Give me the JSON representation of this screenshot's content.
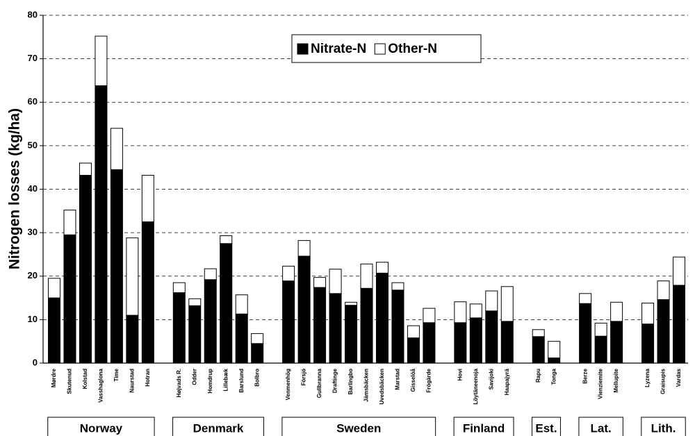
{
  "chart_data": {
    "type": "stacked_bar",
    "ylabel": "Nitrogen losses (kg/ha)",
    "categories": [
      "Mørdre",
      "Skutenud",
      "Kolstad",
      "Vasshaglona",
      "Time",
      "Naurstad",
      "Hotran",
      null,
      "Højvads R.",
      "Odder",
      "Homdrup",
      "Lillebæk",
      "Barslund",
      "Bolbro",
      null,
      "Venmenhög",
      "Försjö",
      "Gullbranna",
      "Draftinge",
      "Barlingbo",
      "Jämsbäcken",
      "Uvedsbäcken",
      "Marstad",
      "Gisselöå",
      "Frögärde",
      null,
      "Hovi",
      "Löytäneenoja",
      "Savijoki",
      "Haapajyrä",
      null,
      "Rapu",
      "Tonga",
      null,
      "Berze",
      "Vienziemite",
      "Mellupite",
      null,
      "Lyzena",
      "Graisupis",
      "Vardas"
    ],
    "groups": [
      "Norway",
      "Denmark",
      "Sweden",
      "Finland",
      "Est.",
      "Lat.",
      "Lith."
    ],
    "series": [
      {
        "name": "Nitrate-N",
        "color": "#000000",
        "values": [
          15,
          29.5,
          43.2,
          63.8,
          44.5,
          11,
          32.5,
          null,
          16.2,
          13.2,
          19.2,
          27.5,
          11.3,
          4.5,
          null,
          18.9,
          24.6,
          17.4,
          16,
          13.3,
          17.2,
          20.7,
          16.8,
          5.8,
          9.3,
          null,
          9.3,
          10.4,
          12,
          9.6,
          null,
          6.1,
          1.2,
          null,
          13.7,
          6.2,
          9.6,
          null,
          9,
          14.6,
          17.9
        ]
      },
      {
        "name": "Other-N",
        "color": "#ffffff",
        "values": [
          4.5,
          5.7,
          2.8,
          11.4,
          9.5,
          17.8,
          10.7,
          null,
          2.3,
          1.6,
          2.5,
          1.8,
          4.4,
          2.3,
          null,
          3.4,
          3.6,
          2.3,
          5.6,
          0.7,
          5.6,
          2.5,
          1.7,
          2.8,
          3.3,
          null,
          4.8,
          3.2,
          4.6,
          8,
          null,
          1.6,
          3.8,
          null,
          2.3,
          3,
          4.4,
          null,
          4.8,
          4.3,
          6.5
        ]
      }
    ],
    "ylim": [
      0,
      80
    ],
    "yticks": [
      0,
      10,
      20,
      30,
      40,
      50,
      60,
      70,
      80
    ],
    "grid": true,
    "legend": "top"
  }
}
